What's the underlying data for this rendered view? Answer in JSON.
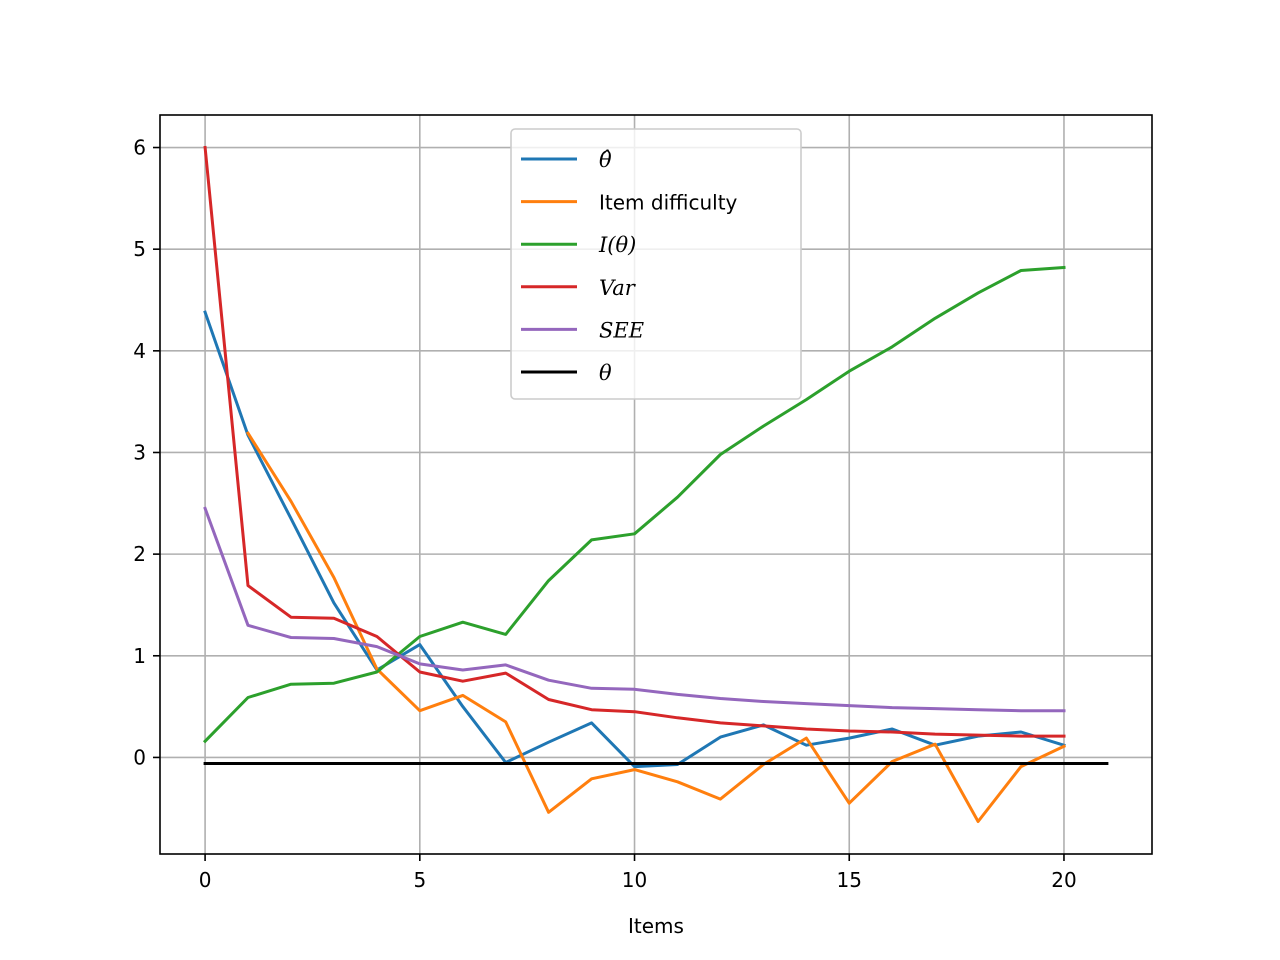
{
  "chart_data": {
    "type": "line",
    "xlabel": "Items",
    "ylabel": "",
    "xlim": [
      -1.05,
      22.05
    ],
    "ylim": [
      -0.95,
      6.32
    ],
    "xticks": [
      0,
      5,
      10,
      15,
      20
    ],
    "yticks": [
      0,
      1,
      2,
      3,
      4,
      5,
      6
    ],
    "xtick_labels": [
      "0",
      "5",
      "10",
      "15",
      "20"
    ],
    "ytick_labels": [
      "0",
      "1",
      "2",
      "3",
      "4",
      "5",
      "6"
    ],
    "grid": true,
    "legend_position": "upper center",
    "series": [
      {
        "name": "θ̂",
        "color": "#1f77b4",
        "x": [
          0,
          1,
          2,
          3,
          4,
          5,
          6,
          7,
          8,
          9,
          10,
          11,
          12,
          13,
          14,
          15,
          16,
          17,
          18,
          19,
          20
        ],
        "y": [
          4.38,
          3.17,
          2.35,
          1.52,
          0.86,
          1.11,
          0.5,
          -0.05,
          0.15,
          0.34,
          -0.09,
          -0.07,
          0.2,
          0.32,
          0.12,
          0.19,
          0.28,
          0.12,
          0.21,
          0.25,
          0.12
        ]
      },
      {
        "name": "Item difficulty",
        "color": "#ff7f0e",
        "x": [
          1,
          2,
          3,
          4,
          5,
          6,
          7,
          8,
          9,
          10,
          11,
          12,
          13,
          14,
          15,
          16,
          17,
          18,
          19,
          20
        ],
        "y": [
          3.19,
          2.52,
          1.77,
          0.87,
          0.46,
          0.61,
          0.35,
          -0.54,
          -0.21,
          -0.12,
          -0.24,
          -0.41,
          -0.07,
          0.19,
          -0.45,
          -0.04,
          0.13,
          -0.63,
          -0.09,
          0.11
        ]
      },
      {
        "name": "I(θ)",
        "color": "#2ca02c",
        "x": [
          0,
          1,
          2,
          3,
          4,
          5,
          6,
          7,
          8,
          9,
          10,
          11,
          12,
          13,
          14,
          15,
          16,
          17,
          18,
          19,
          20
        ],
        "y": [
          0.16,
          0.59,
          0.72,
          0.73,
          0.84,
          1.19,
          1.33,
          1.21,
          1.74,
          2.14,
          2.2,
          2.56,
          2.98,
          3.26,
          3.52,
          3.8,
          4.04,
          4.32,
          4.57,
          4.79,
          4.82
        ]
      },
      {
        "name": "Var",
        "color": "#d62728",
        "x": [
          0,
          1,
          2,
          3,
          4,
          5,
          6,
          7,
          8,
          9,
          10,
          11,
          12,
          13,
          14,
          15,
          16,
          17,
          18,
          19,
          20
        ],
        "y": [
          6.0,
          1.69,
          1.38,
          1.37,
          1.19,
          0.84,
          0.75,
          0.83,
          0.57,
          0.47,
          0.45,
          0.39,
          0.34,
          0.31,
          0.28,
          0.26,
          0.25,
          0.23,
          0.22,
          0.21,
          0.21
        ]
      },
      {
        "name": "SEE",
        "color": "#9467bd",
        "x": [
          0,
          1,
          2,
          3,
          4,
          5,
          6,
          7,
          8,
          9,
          10,
          11,
          12,
          13,
          14,
          15,
          16,
          17,
          18,
          19,
          20
        ],
        "y": [
          2.45,
          1.3,
          1.18,
          1.17,
          1.09,
          0.92,
          0.86,
          0.91,
          0.76,
          0.68,
          0.67,
          0.62,
          0.58,
          0.55,
          0.53,
          0.51,
          0.49,
          0.48,
          0.47,
          0.46,
          0.46
        ]
      },
      {
        "name": "θ",
        "color": "#000000",
        "x": [
          0,
          21
        ],
        "y": [
          -0.06,
          -0.06
        ]
      }
    ],
    "legend": [
      {
        "label": "θ̂",
        "style": "italic"
      },
      {
        "label": "Item difficulty",
        "style": "normal"
      },
      {
        "label": "I(θ)",
        "style": "italic"
      },
      {
        "label": "Var",
        "style": "italic"
      },
      {
        "label": "SEE",
        "style": "italic"
      },
      {
        "label": "θ",
        "style": "italic"
      }
    ]
  }
}
